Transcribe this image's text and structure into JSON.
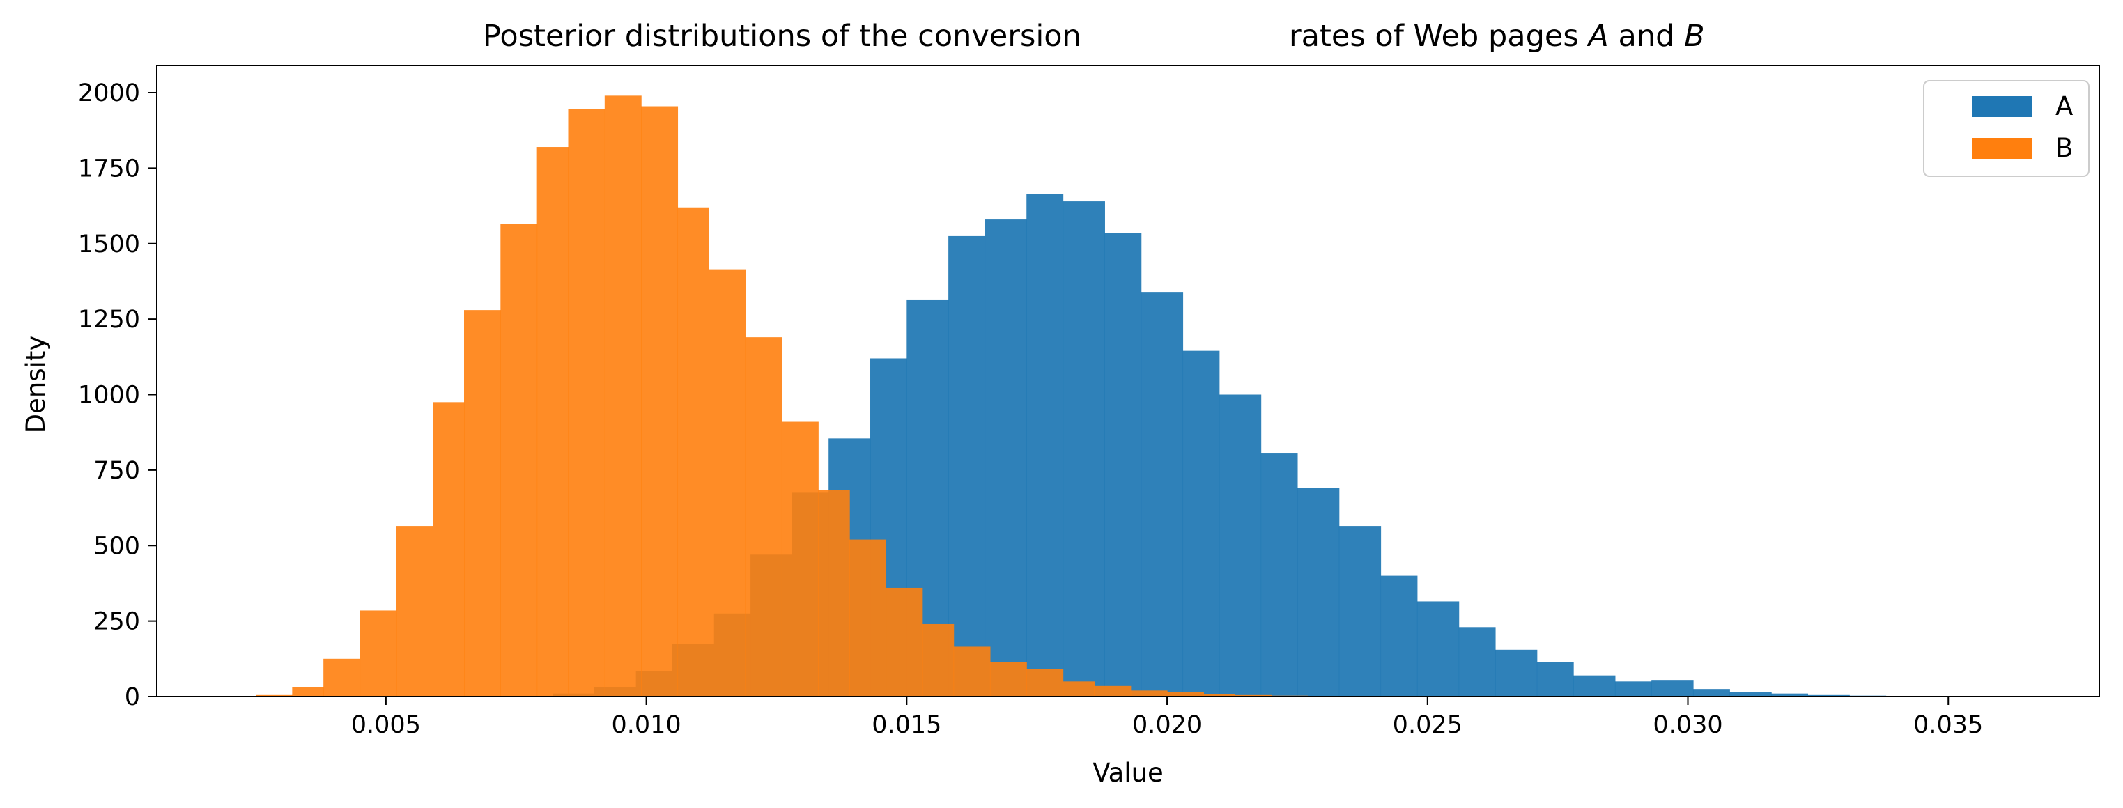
{
  "chart_data": {
    "type": "histogram",
    "title_main": "Posterior distributions of the conversion",
    "title_tail_prefix": "rates of Web pages ",
    "title_var_a": "A",
    "title_and": " and ",
    "title_var_b": "B",
    "xlabel": "Value",
    "ylabel": "Density",
    "xlim": [
      0.0006,
      0.0379
    ],
    "ylim": [
      0,
      2090
    ],
    "xticks": [
      "0.005",
      "0.010",
      "0.015",
      "0.020",
      "0.025",
      "0.030",
      "0.035"
    ],
    "yticks": [
      "0",
      "250",
      "500",
      "750",
      "1000",
      "1250",
      "1500",
      "1750",
      "2000"
    ],
    "legend_position": "top-right",
    "series": [
      {
        "name": "A",
        "color": "#1f77b4",
        "bins": [
          [
            0.0082,
            0.009,
            10
          ],
          [
            0.009,
            0.0098,
            30
          ],
          [
            0.0098,
            0.0105,
            85
          ],
          [
            0.0105,
            0.0113,
            175
          ],
          [
            0.0113,
            0.012,
            275
          ],
          [
            0.012,
            0.0128,
            470
          ],
          [
            0.0128,
            0.0135,
            675
          ],
          [
            0.0135,
            0.0143,
            855
          ],
          [
            0.0143,
            0.015,
            1120
          ],
          [
            0.015,
            0.0158,
            1315
          ],
          [
            0.0158,
            0.0165,
            1525
          ],
          [
            0.0165,
            0.0173,
            1580
          ],
          [
            0.0173,
            0.018,
            1665
          ],
          [
            0.018,
            0.0188,
            1640
          ],
          [
            0.0188,
            0.0195,
            1535
          ],
          [
            0.0195,
            0.0203,
            1340
          ],
          [
            0.0203,
            0.021,
            1145
          ],
          [
            0.021,
            0.0218,
            1000
          ],
          [
            0.0218,
            0.0225,
            805
          ],
          [
            0.0225,
            0.0233,
            690
          ],
          [
            0.0233,
            0.0241,
            565
          ],
          [
            0.0241,
            0.0248,
            400
          ],
          [
            0.0248,
            0.0256,
            315
          ],
          [
            0.0256,
            0.0263,
            230
          ],
          [
            0.0263,
            0.0271,
            155
          ],
          [
            0.0271,
            0.0278,
            115
          ],
          [
            0.0278,
            0.0286,
            70
          ],
          [
            0.0286,
            0.0293,
            50
          ],
          [
            0.0293,
            0.0301,
            55
          ],
          [
            0.0301,
            0.0308,
            25
          ],
          [
            0.0308,
            0.0316,
            15
          ],
          [
            0.0316,
            0.0323,
            10
          ],
          [
            0.0323,
            0.0331,
            5
          ],
          [
            0.0331,
            0.0338,
            3
          ],
          [
            0.0338,
            0.0346,
            2
          ],
          [
            0.0346,
            0.0353,
            1
          ],
          [
            0.0353,
            0.0361,
            1
          ]
        ]
      },
      {
        "name": "B",
        "color": "#ff7f0e",
        "bins": [
          [
            0.0025,
            0.0032,
            5
          ],
          [
            0.0032,
            0.0038,
            30
          ],
          [
            0.0038,
            0.0045,
            125
          ],
          [
            0.0045,
            0.0052,
            285
          ],
          [
            0.0052,
            0.0059,
            565
          ],
          [
            0.0059,
            0.0065,
            975
          ],
          [
            0.0065,
            0.0072,
            1280
          ],
          [
            0.0072,
            0.0079,
            1565
          ],
          [
            0.0079,
            0.0085,
            1820
          ],
          [
            0.0085,
            0.0092,
            1945
          ],
          [
            0.0092,
            0.0099,
            1990
          ],
          [
            0.0099,
            0.0106,
            1955
          ],
          [
            0.0106,
            0.0112,
            1620
          ],
          [
            0.0112,
            0.0119,
            1415
          ],
          [
            0.0119,
            0.0126,
            1190
          ],
          [
            0.0126,
            0.0133,
            910
          ],
          [
            0.0133,
            0.0139,
            685
          ],
          [
            0.0139,
            0.0146,
            520
          ],
          [
            0.0146,
            0.0153,
            360
          ],
          [
            0.0153,
            0.0159,
            240
          ],
          [
            0.0159,
            0.0166,
            165
          ],
          [
            0.0166,
            0.0173,
            115
          ],
          [
            0.0173,
            0.018,
            90
          ],
          [
            0.018,
            0.0186,
            50
          ],
          [
            0.0186,
            0.0193,
            35
          ],
          [
            0.0193,
            0.02,
            20
          ],
          [
            0.02,
            0.0207,
            15
          ],
          [
            0.0207,
            0.0213,
            8
          ],
          [
            0.0213,
            0.022,
            5
          ],
          [
            0.022,
            0.0227,
            3
          ]
        ]
      }
    ]
  }
}
